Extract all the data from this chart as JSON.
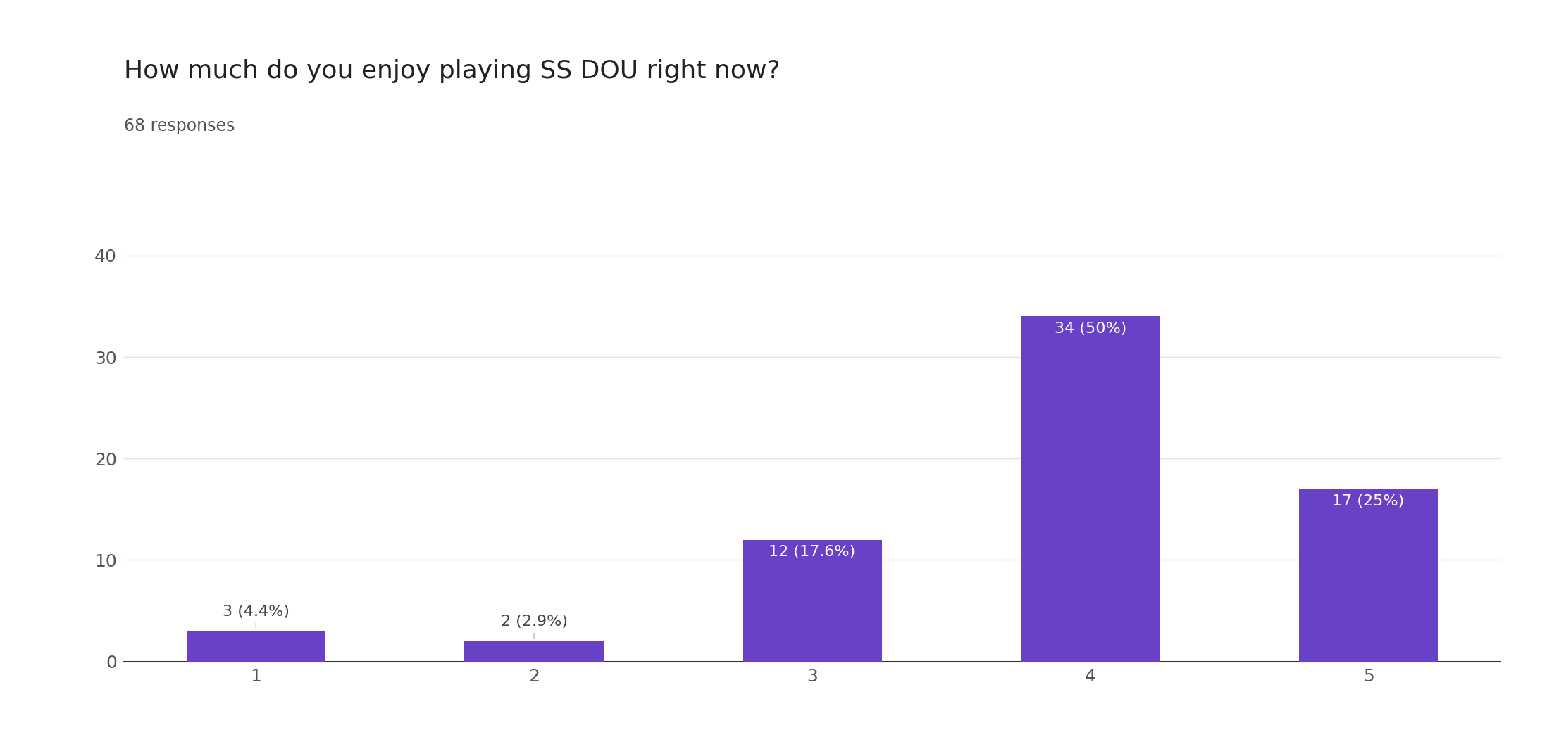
{
  "title": "How much do you enjoy playing SS DOU right now?",
  "subtitle": "68 responses",
  "categories": [
    1,
    2,
    3,
    4,
    5
  ],
  "values": [
    3,
    2,
    12,
    34,
    17
  ],
  "labels": [
    "3 (4.4%)",
    "2 (2.9%)",
    "12 (17.6%)",
    "34 (50%)",
    "17 (25%)"
  ],
  "bar_color": "#6941C6",
  "background_color": "#ffffff",
  "grid_color": "#e0e0e0",
  "title_fontsize": 26,
  "subtitle_fontsize": 17,
  "tick_fontsize": 18,
  "label_fontsize": 16,
  "ylim": [
    0,
    42
  ],
  "yticks": [
    0,
    10,
    20,
    30,
    40
  ],
  "title_color": "#212121",
  "subtitle_color": "#555555",
  "tick_color": "#555555",
  "label_color_outside": "#424242",
  "label_color_inside": "#ffffff"
}
